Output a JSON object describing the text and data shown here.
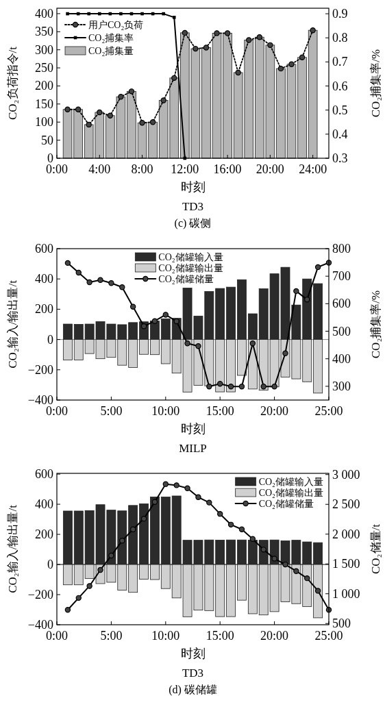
{
  "chart_data": [
    {
      "type": "bar",
      "title": "TD3",
      "xlabel": "时刻",
      "ylabel": "CO₂负荷指令/t",
      "y2label": "CO₂捕集率/%",
      "annotations": [
        "(c) 碳侧"
      ],
      "legend": "top left",
      "x": [
        1,
        2,
        3,
        4,
        5,
        6,
        7,
        8,
        9,
        10,
        11,
        12,
        13,
        14,
        15,
        16,
        17,
        18,
        19,
        20,
        21,
        22,
        23,
        24
      ],
      "xlim": [
        0,
        25.5
      ],
      "xticks": [
        {
          "value": 0,
          "label": "0:00"
        },
        {
          "value": 4,
          "label": "4:00"
        },
        {
          "value": 8,
          "label": "8:00"
        },
        {
          "value": 12,
          "label": "12:00"
        },
        {
          "value": 16,
          "label": "16:00"
        },
        {
          "value": 20,
          "label": "20:00"
        },
        {
          "value": 24,
          "label": "24:00"
        }
      ],
      "ylim": [
        0,
        415
      ],
      "yticks": [
        0,
        50,
        100,
        150,
        200,
        250,
        300,
        350,
        400
      ],
      "y2lim": [
        0.3,
        0.923
      ],
      "y2ticks": [
        0.3,
        0.4,
        0.5,
        0.6,
        0.7,
        0.8,
        0.9
      ],
      "series": [
        {
          "name": "用户CO₂负荷",
          "type": "line",
          "color": "#000000",
          "marker": "circle",
          "line_style": "dotted",
          "values": [
            135,
            135,
            93,
            127,
            118,
            170,
            185,
            98,
            100,
            160,
            222,
            347,
            303,
            306,
            346,
            346,
            237,
            327,
            335,
            313,
            248,
            260,
            279,
            354
          ]
        },
        {
          "name": "CO₂捕集率",
          "type": "line",
          "axis": "y2",
          "color": "#000000",
          "marker": "square",
          "line_style": "solid",
          "x": [
            1,
            2,
            3,
            4,
            5,
            6,
            7,
            8,
            9,
            10,
            11,
            12
          ],
          "values": [
            0.9,
            0.9,
            0.9,
            0.9,
            0.9,
            0.9,
            0.9,
            0.9,
            0.9,
            0.9,
            0.885,
            0.3
          ]
        },
        {
          "name": "CO₂捕集量",
          "color": "#b4b4b4",
          "values": [
            135,
            135,
            93,
            127,
            118,
            170,
            185,
            98,
            100,
            160,
            222,
            347,
            303,
            306,
            346,
            346,
            237,
            327,
            335,
            313,
            248,
            260,
            279,
            354
          ]
        }
      ]
    },
    {
      "type": "bar",
      "title": "MILP",
      "xlabel": "时刻",
      "ylabel": "CO₂输入/输出量/t",
      "y2label": "CO₂捕集率/%",
      "legend": "top",
      "stacked": true,
      "x": [
        1,
        2,
        3,
        4,
        5,
        6,
        7,
        8,
        9,
        10,
        11,
        12,
        13,
        14,
        15,
        16,
        17,
        18,
        19,
        20,
        21,
        22,
        23,
        24
      ],
      "xlim": [
        0,
        25
      ],
      "xticks": [
        {
          "value": 0,
          "label": "0:00"
        },
        {
          "value": 5,
          "label": "5:00"
        },
        {
          "value": 10,
          "label": "10:00"
        },
        {
          "value": 15,
          "label": "15:00"
        },
        {
          "value": 20,
          "label": "20:00"
        },
        {
          "value": 25,
          "label": "25:00"
        }
      ],
      "ylim": [
        -400,
        600
      ],
      "yticks": [
        -400,
        -200,
        0,
        200,
        400,
        600
      ],
      "y2lim": [
        250,
        800
      ],
      "y2ticks": [
        300,
        400,
        500,
        600,
        700,
        800
      ],
      "ref_lines": [
        {
          "axis": "y",
          "value": 0,
          "color": "#888888"
        }
      ],
      "series": [
        {
          "name": "CO₂储罐输入量",
          "color": "#2b2b2b",
          "values": [
            102,
            100,
            102,
            118,
            102,
            98,
            112,
            117,
            123,
            137,
            140,
            340,
            155,
            317,
            337,
            346,
            395,
            170,
            335,
            434,
            477,
            228,
            400,
            369
          ]
        },
        {
          "name": "CO₂储罐输出量",
          "color": "#d0d0d0",
          "values": [
            -135,
            -135,
            -93,
            -127,
            -118,
            -170,
            -185,
            -98,
            -100,
            -160,
            -222,
            -347,
            -303,
            -306,
            -346,
            -346,
            -237,
            -327,
            -335,
            -313,
            -248,
            -260,
            -279,
            -354
          ]
        },
        {
          "name": "CO₂储罐储量",
          "type": "line",
          "axis": "y2",
          "color": "#000000",
          "marker": "circle",
          "line_style": "solid",
          "x": [
            1,
            2,
            3,
            4,
            5,
            6,
            7,
            8,
            9,
            10,
            11,
            12,
            13,
            14,
            15,
            16,
            17,
            18,
            19,
            20,
            21,
            22,
            23,
            24,
            25
          ],
          "values": [
            748,
            713,
            678,
            686,
            675,
            660,
            589,
            518,
            537,
            560,
            536,
            456,
            446,
            299,
            309,
            299,
            299,
            456,
            299,
            299,
            420,
            646,
            615,
            733,
            749
          ]
        }
      ]
    },
    {
      "type": "bar",
      "title": "TD3",
      "xlabel": "时刻",
      "ylabel": "CO₂输入/输出量/t",
      "y2label": "CO₂储量/t",
      "annotations": [
        "(d) 碳储罐"
      ],
      "legend": "top right",
      "stacked": true,
      "x": [
        1,
        2,
        3,
        4,
        5,
        6,
        7,
        8,
        9,
        10,
        11,
        12,
        13,
        14,
        15,
        16,
        17,
        18,
        19,
        20,
        21,
        22,
        23,
        24
      ],
      "xlim": [
        0,
        25
      ],
      "xticks": [
        {
          "value": 0,
          "label": "0:00"
        },
        {
          "value": 5,
          "label": "5:00"
        },
        {
          "value": 10,
          "label": "10:00"
        },
        {
          "value": 15,
          "label": "15:00"
        },
        {
          "value": 20,
          "label": "20:00"
        },
        {
          "value": 25,
          "label": "25:00"
        }
      ],
      "ylim": [
        -400,
        605
      ],
      "yticks": [
        -400,
        -200,
        0,
        200,
        400,
        600
      ],
      "y2lim": [
        480,
        3020
      ],
      "y2ticks": [
        500,
        {
          "value": 1000,
          "label": "1 000"
        },
        {
          "value": 1500,
          "label": "1 500"
        },
        {
          "value": 2000,
          "label": "2 000"
        },
        {
          "value": 2500,
          "label": "2 500"
        },
        {
          "value": 3000,
          "label": "3 000"
        }
      ],
      "ref_lines": [
        {
          "axis": "y",
          "value": 0,
          "color": "#000000"
        }
      ],
      "series": [
        {
          "name": "CO₂储罐输入量",
          "color": "#2b2b2b",
          "values": [
            355,
            355,
            358,
            397,
            361,
            356,
            392,
            403,
            448,
            448,
            455,
            161,
            161,
            163,
            162,
            163,
            163,
            162,
            161,
            163,
            157,
            161,
            150,
            145
          ]
        },
        {
          "name": "CO₂储罐输出量",
          "color": "#d0d0d0",
          "values": [
            -135,
            -135,
            -93,
            -127,
            -118,
            -170,
            -185,
            -98,
            -100,
            -160,
            -222,
            -347,
            -303,
            -306,
            -346,
            -346,
            -237,
            -327,
            -335,
            -313,
            -248,
            -260,
            -279,
            -354
          ]
        },
        {
          "name": "CO₂储罐储量",
          "type": "line",
          "axis": "y2",
          "color": "#000000",
          "marker": "circle",
          "line_style": "solid",
          "x": [
            1,
            2,
            3,
            4,
            5,
            6,
            7,
            8,
            9,
            10,
            11,
            12,
            13,
            14,
            15,
            16,
            17,
            18,
            19,
            20,
            21,
            22,
            23,
            24,
            25
          ],
          "values": [
            730,
            930,
            1130,
            1400,
            1640,
            1890,
            2080,
            2260,
            2540,
            2840,
            2820,
            2770,
            2620,
            2530,
            2340,
            2160,
            2080,
            1920,
            1740,
            1590,
            1490,
            1380,
            1260,
            1050,
            730
          ]
        }
      ]
    }
  ]
}
